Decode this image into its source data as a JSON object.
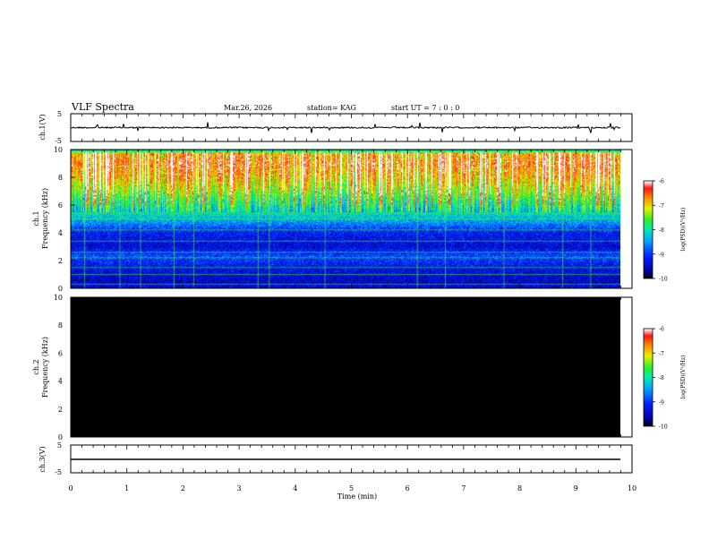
{
  "header": {
    "title": "VLF Spectra",
    "date": "Mar.26, 2026",
    "station": "station= KAG",
    "start_ut": "start  UT =   7 : 0  : 0"
  },
  "colorscale": {
    "label": "log(PSD)(V²/Hz)",
    "range": [
      -10,
      -6
    ],
    "ticks": [
      "-6",
      "-7",
      "-8",
      "-9",
      "-10"
    ]
  },
  "chart_data": [
    {
      "type": "line",
      "panel": "ch1-waveform",
      "ylabel": "ch.1(V)",
      "ylim": [
        -5,
        5
      ],
      "ytick_labels": [
        "5",
        "-5"
      ],
      "baseline": 0,
      "note": "waveform near 0 V with sparse spikes"
    },
    {
      "type": "heatmap",
      "panel": "ch1-spectrogram",
      "ylabel_top": "ch.1",
      "ylabel": "Frequency (kHz)",
      "ylim": [
        0,
        10
      ],
      "ytick_labels": [
        "0",
        "2",
        "4",
        "6",
        "8",
        "10"
      ],
      "xlim": [
        0,
        9.83
      ],
      "zlim": [
        -10,
        -6
      ],
      "level_profile": [
        {
          "f": 0.0,
          "z": -9.4
        },
        {
          "f": 0.5,
          "z": -9.5
        },
        {
          "f": 1.5,
          "z": -9.3
        },
        {
          "f": 2.3,
          "z": -8.9
        },
        {
          "f": 3.0,
          "z": -9.4
        },
        {
          "f": 4.0,
          "z": -9.2
        },
        {
          "f": 5.0,
          "z": -8.3
        },
        {
          "f": 6.0,
          "z": -7.8
        },
        {
          "f": 7.0,
          "z": -7.2
        },
        {
          "f": 8.0,
          "z": -6.7
        },
        {
          "f": 9.0,
          "z": -6.4
        },
        {
          "f": 9.7,
          "z": -6.6
        },
        {
          "f": 10.0,
          "z": -8.6
        }
      ],
      "vertical_lines_min": [
        0.25,
        0.88,
        1.25,
        1.85,
        2.2,
        3.35,
        3.55,
        4.55,
        6.2,
        6.7,
        7.75,
        8.8,
        9.3
      ],
      "horizontal_lines_khz": [
        0.3,
        1.0,
        1.5,
        2.2,
        2.6,
        3.4,
        4.2,
        5.0,
        5.4,
        6.1,
        6.6
      ]
    },
    {
      "type": "heatmap",
      "panel": "ch2-spectrogram",
      "ylabel_top": "ch.2",
      "ylabel": "Frequency (kHz)",
      "ylim": [
        0,
        10
      ],
      "ytick_labels": [
        "0",
        "2",
        "4",
        "6",
        "8",
        "10"
      ],
      "xlim": [
        0,
        9.83
      ],
      "fill": "#000000",
      "note": "no signal (black)"
    },
    {
      "type": "line",
      "panel": "ch3-waveform",
      "ylabel": "ch.3(V)",
      "ylim": [
        -5,
        5
      ],
      "ytick_labels": [
        "5",
        "-5"
      ],
      "value": -1,
      "note": "flat line"
    }
  ],
  "xaxis": {
    "label": "Time (min)",
    "xlim": [
      0,
      10
    ],
    "ticks": [
      "0",
      "1",
      "2",
      "3",
      "4",
      "5",
      "6",
      "7",
      "8",
      "9",
      "10"
    ]
  }
}
